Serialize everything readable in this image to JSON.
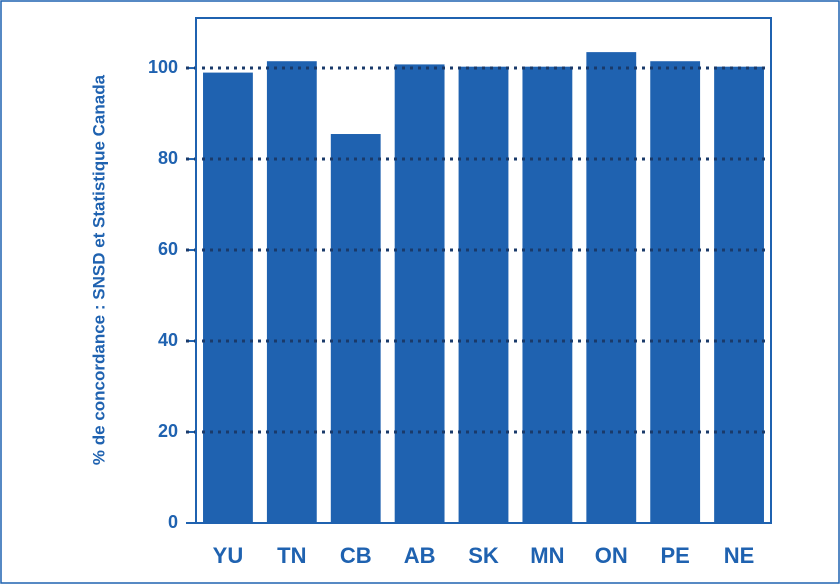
{
  "chart_data": {
    "type": "bar",
    "ylabel": "% de concordance : SNSD et Statistique Canada",
    "categories": [
      "YU",
      "TN",
      "CB",
      "AB",
      "SK",
      "MN",
      "ON",
      "PE",
      "NE"
    ],
    "values": [
      99,
      101.5,
      85.5,
      100.8,
      100.3,
      100.3,
      103.5,
      101.5,
      100.3
    ],
    "color": "#1f62b0",
    "ylim": [
      0,
      111
    ],
    "yticks": [
      0,
      20,
      40,
      60,
      80,
      100
    ],
    "grid": true
  }
}
